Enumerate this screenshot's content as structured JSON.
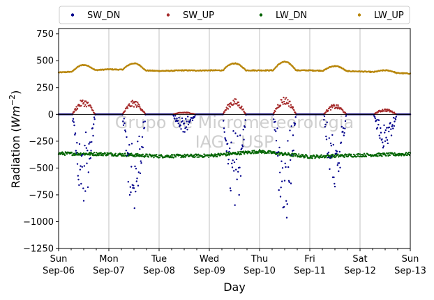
{
  "chart_data": {
    "type": "scatter",
    "xlabel": "Day",
    "ylabel_main": "Radiation (",
    "ylabel_unit": "Wm",
    "ylabel_exp": "−2",
    "ylabel_close": ")",
    "ylim": [
      -1250,
      800
    ],
    "yticks": [
      750,
      500,
      250,
      0,
      -250,
      -500,
      -750,
      -1000,
      -1250
    ],
    "ytick_labels": [
      "750",
      "500",
      "250",
      "0",
      "−250",
      "−500",
      "−750",
      "−1000",
      "−1250"
    ],
    "x_range_days": [
      0,
      7
    ],
    "xticks": [
      {
        "day": 0,
        "weekday": "Sun",
        "date": "Sep-06"
      },
      {
        "day": 1,
        "weekday": "Mon",
        "date": "Sep-07"
      },
      {
        "day": 2,
        "weekday": "Tue",
        "date": "Sep-08"
      },
      {
        "day": 3,
        "weekday": "Wed",
        "date": "Sep-09"
      },
      {
        "day": 4,
        "weekday": "Thu",
        "date": "Sep-10"
      },
      {
        "day": 5,
        "weekday": "Fri",
        "date": "Sep-11"
      },
      {
        "day": 6,
        "weekday": "Sat",
        "date": "Sep-12"
      },
      {
        "day": 7,
        "weekday": "Sun",
        "date": "Sep-13"
      }
    ],
    "grid": "vertical",
    "legend_position": "top",
    "zero_line": true,
    "watermark": [
      "Grupo de Micrometeorologia",
      "IAG - USP"
    ],
    "series": [
      {
        "name": "SW_DN",
        "color": "#00008b",
        "day_peaks": [
          -760,
          -840,
          -150,
          -860,
          -940,
          -630,
          -300
        ],
        "night_value": 0
      },
      {
        "name": "SW_UP",
        "color": "#a52a2a",
        "day_peaks": [
          135,
          125,
          20,
          140,
          160,
          90,
          50
        ],
        "night_value": 0
      },
      {
        "name": "LW_DN",
        "color": "#006400",
        "day_values": [
          -365,
          -370,
          -390,
          -385,
          -345,
          -395,
          -380,
          -370
        ],
        "noise": 15
      },
      {
        "name": "LW_UP",
        "color": "#b8860b",
        "base_values": [
          390,
          420,
          405,
          410,
          410,
          410,
          400,
          380
        ],
        "day_peaks": [
          460,
          475,
          410,
          475,
          490,
          450,
          410
        ]
      }
    ]
  }
}
